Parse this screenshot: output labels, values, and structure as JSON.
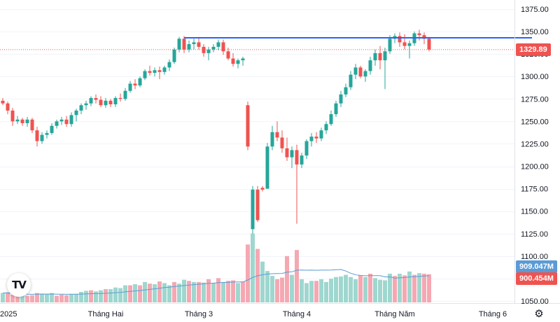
{
  "colors": {
    "up": "#26a69a",
    "down": "#ef5350",
    "up_volume": "#9fd7cf",
    "down_volume": "#f5a8b2",
    "resistance_line": "#2962ff",
    "volume_ma": "#5b9bd5",
    "grid": "#f0f3fa"
  },
  "icons": {
    "logo": "tradingview-logo",
    "settings": "gear-icon"
  },
  "logo_text": "TV",
  "settings_glyph": "⚙",
  "chart_data": {
    "type": "candlestick",
    "price_axis": {
      "ticks": [
        "1375.00",
        "1350.00",
        "1325.00",
        "1300.00",
        "1275.00",
        "1250.00",
        "1225.00",
        "1200.00",
        "1175.00",
        "1150.00",
        "1125.00",
        "1100.00",
        "1075.00",
        "1050.00"
      ],
      "ylim": [
        1045,
        1378
      ]
    },
    "time_axis": {
      "labels": [
        {
          "text": "2025",
          "index": -1
        },
        {
          "text": "Tháng Hai",
          "index": 21
        },
        {
          "text": "Tháng 3",
          "index": 40
        },
        {
          "text": "Tháng 4",
          "index": 60
        },
        {
          "text": "Tháng Năm",
          "index": 80
        },
        {
          "text": "Tháng 6",
          "index": 100
        }
      ]
    },
    "last_price_label": "1329.89",
    "resistance_level": 1343,
    "resistance_range": [
      37,
      108
    ],
    "volume_ma_label": "909.047M",
    "volume_label": "900.454M",
    "volume_max": 132,
    "candles": [
      [
        1273,
        1276,
        1268,
        1270
      ],
      [
        1270,
        1272,
        1258,
        1262
      ],
      [
        1262,
        1265,
        1245,
        1250
      ],
      [
        1250,
        1256,
        1247,
        1252
      ],
      [
        1252,
        1254,
        1245,
        1248
      ],
      [
        1248,
        1255,
        1244,
        1252
      ],
      [
        1252,
        1254,
        1237,
        1240
      ],
      [
        1240,
        1244,
        1222,
        1228
      ],
      [
        1228,
        1238,
        1225,
        1235
      ],
      [
        1235,
        1240,
        1231,
        1237
      ],
      [
        1237,
        1248,
        1235,
        1245
      ],
      [
        1245,
        1252,
        1242,
        1250
      ],
      [
        1250,
        1255,
        1246,
        1252
      ],
      [
        1252,
        1256,
        1244,
        1247
      ],
      [
        1247,
        1260,
        1244,
        1257
      ],
      [
        1257,
        1264,
        1250,
        1262
      ],
      [
        1262,
        1270,
        1258,
        1268
      ],
      [
        1268,
        1273,
        1263,
        1270
      ],
      [
        1270,
        1278,
        1267,
        1276
      ],
      [
        1276,
        1280,
        1270,
        1274
      ],
      [
        1274,
        1278,
        1266,
        1268
      ],
      [
        1268,
        1276,
        1265,
        1273
      ],
      [
        1273,
        1275,
        1266,
        1269
      ],
      [
        1269,
        1278,
        1266,
        1276
      ],
      [
        1276,
        1281,
        1272,
        1275
      ],
      [
        1275,
        1287,
        1273,
        1284
      ],
      [
        1284,
        1295,
        1282,
        1292
      ],
      [
        1292,
        1297,
        1286,
        1290
      ],
      [
        1290,
        1300,
        1288,
        1298
      ],
      [
        1298,
        1308,
        1296,
        1306
      ],
      [
        1306,
        1312,
        1301,
        1304
      ],
      [
        1304,
        1310,
        1300,
        1307
      ],
      [
        1307,
        1311,
        1297,
        1305
      ],
      [
        1305,
        1312,
        1302,
        1310
      ],
      [
        1310,
        1319,
        1306,
        1316
      ],
      [
        1316,
        1332,
        1314,
        1330
      ],
      [
        1330,
        1344,
        1327,
        1342
      ],
      [
        1342,
        1345,
        1326,
        1330
      ],
      [
        1330,
        1340,
        1327,
        1336
      ],
      [
        1336,
        1342,
        1330,
        1338
      ],
      [
        1338,
        1344,
        1330,
        1333
      ],
      [
        1333,
        1336,
        1322,
        1326
      ],
      [
        1326,
        1333,
        1318,
        1330
      ],
      [
        1330,
        1336,
        1327,
        1333
      ],
      [
        1333,
        1341,
        1329,
        1338
      ],
      [
        1338,
        1341,
        1324,
        1328
      ],
      [
        1328,
        1332,
        1318,
        1320
      ],
      [
        1320,
        1326,
        1311,
        1314
      ],
      [
        1314,
        1320,
        1309,
        1318
      ],
      [
        1318,
        1322,
        1312,
        1320
      ],
      [
        1268,
        1272,
        1218,
        1222
      ],
      [
        1130,
        1178,
        1125,
        1174
      ],
      [
        1174,
        1178,
        1138,
        1140
      ],
      [
        1176,
        1178,
        1172,
        1174
      ],
      [
        1175,
        1226,
        1175,
        1222
      ],
      [
        1222,
        1245,
        1218,
        1238
      ],
      [
        1238,
        1250,
        1228,
        1232
      ],
      [
        1232,
        1240,
        1215,
        1220
      ],
      [
        1220,
        1232,
        1206,
        1210
      ],
      [
        1210,
        1222,
        1198,
        1218
      ],
      [
        1218,
        1224,
        1136,
        1202
      ],
      [
        1202,
        1215,
        1198,
        1212
      ],
      [
        1212,
        1230,
        1208,
        1228
      ],
      [
        1228,
        1237,
        1222,
        1233
      ],
      [
        1233,
        1238,
        1226,
        1231
      ],
      [
        1231,
        1243,
        1228,
        1240
      ],
      [
        1240,
        1250,
        1236,
        1247
      ],
      [
        1247,
        1262,
        1245,
        1258
      ],
      [
        1258,
        1273,
        1255,
        1270
      ],
      [
        1270,
        1284,
        1266,
        1280
      ],
      [
        1280,
        1292,
        1277,
        1288
      ],
      [
        1288,
        1306,
        1285,
        1302
      ],
      [
        1302,
        1314,
        1297,
        1310
      ],
      [
        1310,
        1312,
        1298,
        1300
      ],
      [
        1300,
        1308,
        1294,
        1306
      ],
      [
        1306,
        1322,
        1302,
        1318
      ],
      [
        1318,
        1330,
        1312,
        1326
      ],
      [
        1326,
        1334,
        1308,
        1318
      ],
      [
        1318,
        1332,
        1286,
        1328
      ],
      [
        1328,
        1346,
        1325,
        1342
      ],
      [
        1342,
        1348,
        1337,
        1345
      ],
      [
        1345,
        1349,
        1333,
        1338
      ],
      [
        1338,
        1347,
        1330,
        1334
      ],
      [
        1334,
        1340,
        1320,
        1337
      ],
      [
        1337,
        1350,
        1334,
        1348
      ],
      [
        1348,
        1352,
        1340,
        1346
      ],
      [
        1346,
        1349,
        1336,
        1342
      ],
      [
        1342,
        1344,
        1328,
        1330
      ]
    ],
    "volumes": [
      [
        17,
        1
      ],
      [
        18,
        0
      ],
      [
        14,
        0
      ],
      [
        13,
        0
      ],
      [
        16,
        1
      ],
      [
        12,
        0
      ],
      [
        13,
        0
      ],
      [
        17,
        0
      ],
      [
        16,
        1
      ],
      [
        15,
        1
      ],
      [
        17,
        1
      ],
      [
        12,
        0
      ],
      [
        14,
        0
      ],
      [
        13,
        0
      ],
      [
        15,
        1
      ],
      [
        15,
        1
      ],
      [
        19,
        1
      ],
      [
        21,
        1
      ],
      [
        22,
        0
      ],
      [
        20,
        1
      ],
      [
        22,
        1
      ],
      [
        24,
        0
      ],
      [
        24,
        1
      ],
      [
        27,
        1
      ],
      [
        26,
        1
      ],
      [
        31,
        1
      ],
      [
        31,
        0
      ],
      [
        33,
        1
      ],
      [
        31,
        0
      ],
      [
        37,
        1
      ],
      [
        34,
        0
      ],
      [
        33,
        1
      ],
      [
        38,
        0
      ],
      [
        35,
        1
      ],
      [
        31,
        1
      ],
      [
        37,
        0
      ],
      [
        34,
        1
      ],
      [
        41,
        1
      ],
      [
        39,
        0
      ],
      [
        37,
        1
      ],
      [
        37,
        0
      ],
      [
        36,
        1
      ],
      [
        42,
        0
      ],
      [
        35,
        1
      ],
      [
        44,
        0
      ],
      [
        37,
        1
      ],
      [
        39,
        0
      ],
      [
        40,
        0
      ],
      [
        35,
        1
      ],
      [
        38,
        0
      ],
      [
        105,
        0
      ],
      [
        125,
        1
      ],
      [
        97,
        0
      ],
      [
        74,
        1
      ],
      [
        57,
        1
      ],
      [
        48,
        1
      ],
      [
        42,
        0
      ],
      [
        45,
        0
      ],
      [
        84,
        0
      ],
      [
        50,
        1
      ],
      [
        95,
        0
      ],
      [
        42,
        1
      ],
      [
        35,
        1
      ],
      [
        39,
        1
      ],
      [
        39,
        0
      ],
      [
        42,
        1
      ],
      [
        37,
        1
      ],
      [
        43,
        1
      ],
      [
        46,
        1
      ],
      [
        47,
        1
      ],
      [
        50,
        1
      ],
      [
        46,
        1
      ],
      [
        42,
        1
      ],
      [
        49,
        0
      ],
      [
        46,
        1
      ],
      [
        52,
        0
      ],
      [
        44,
        1
      ],
      [
        41,
        1
      ],
      [
        40,
        1
      ],
      [
        52,
        1
      ],
      [
        48,
        0
      ],
      [
        52,
        1
      ],
      [
        49,
        0
      ],
      [
        56,
        1
      ],
      [
        50,
        0
      ],
      [
        53,
        1
      ],
      [
        52,
        0
      ],
      [
        51,
        0
      ]
    ]
  }
}
